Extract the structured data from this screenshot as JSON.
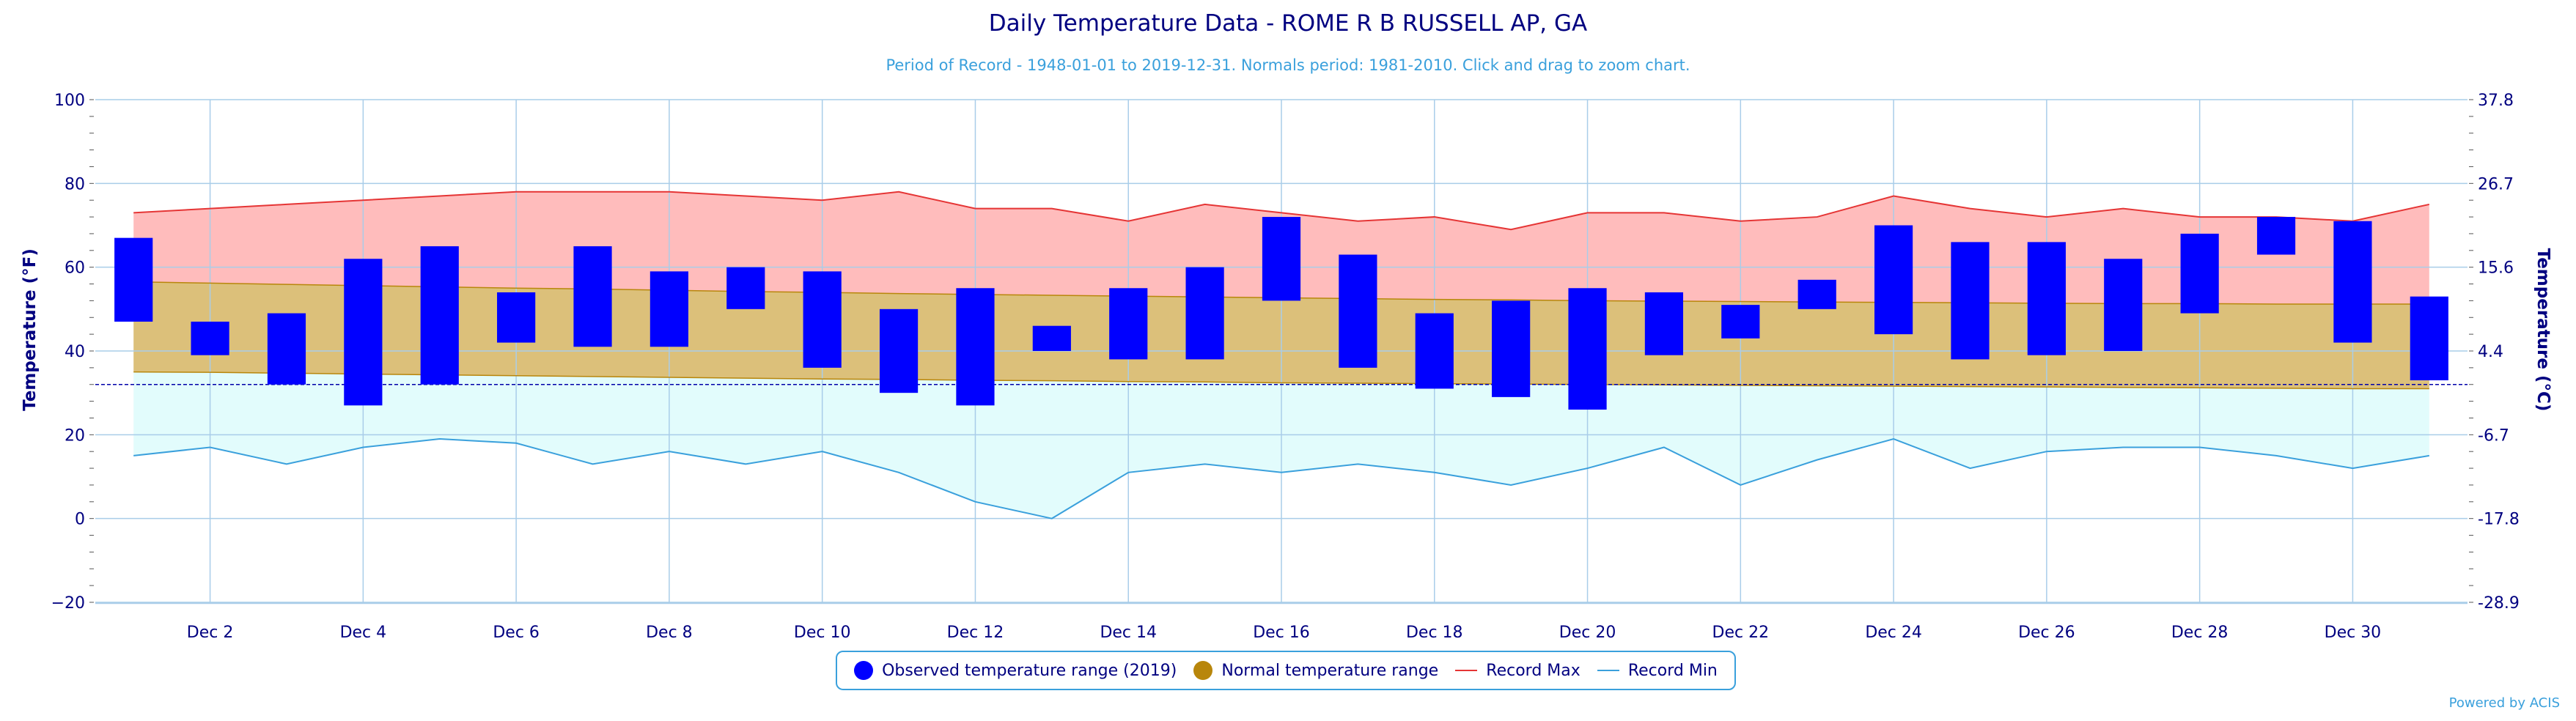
{
  "chart_data": {
    "type": "bar",
    "title": "Daily Temperature Data - ROME R B RUSSELL AP, GA",
    "subtitle": "Period of Record - 1948-01-01 to 2019-12-31. Normals period: 1981-2010. Click and drag to zoom chart.",
    "ylabel": "Temperature (°F)",
    "ylabel_right": "Temperature (°C)",
    "ylim": [
      -20,
      100
    ],
    "y_ticks": [
      "100",
      "80",
      "60",
      "40",
      "20",
      "0",
      "−20"
    ],
    "y_ticks_right": [
      "37.8",
      "26.7",
      "15.6",
      "4.4",
      "-6.7",
      "-17.8",
      "-28.9"
    ],
    "x_tick_labels": [
      "Dec 2",
      "Dec 4",
      "Dec 6",
      "Dec 8",
      "Dec 10",
      "Dec 12",
      "Dec 14",
      "Dec 16",
      "Dec 18",
      "Dec 20",
      "Dec 22",
      "Dec 24",
      "Dec 26",
      "Dec 28",
      "Dec 30"
    ],
    "x_tick_days": [
      2,
      4,
      6,
      8,
      10,
      12,
      14,
      16,
      18,
      20,
      22,
      24,
      26,
      28,
      30
    ],
    "days": [
      1,
      2,
      3,
      4,
      5,
      6,
      7,
      8,
      9,
      10,
      11,
      12,
      13,
      14,
      15,
      16,
      17,
      18,
      19,
      20,
      21,
      22,
      23,
      24,
      25,
      26,
      27,
      28,
      29,
      30,
      31
    ],
    "observed": {
      "name": "Observed temperature range (2019)",
      "low": [
        47,
        39,
        32,
        27,
        32,
        42,
        41,
        41,
        50,
        36,
        30,
        27,
        40,
        38,
        38,
        52,
        36,
        31,
        29,
        26,
        39,
        43,
        50,
        44,
        38,
        39,
        40,
        49,
        63,
        42,
        33
      ],
      "high": [
        67,
        47,
        49,
        62,
        65,
        54,
        65,
        59,
        60,
        59,
        50,
        55,
        46,
        55,
        60,
        72,
        63,
        49,
        52,
        55,
        54,
        51,
        57,
        70,
        66,
        66,
        62,
        68,
        72,
        71,
        53
      ]
    },
    "normal": {
      "name": "Normal temperature range",
      "low": [
        35,
        34.9,
        34.7,
        34.5,
        34.3,
        34.1,
        33.9,
        33.7,
        33.5,
        33.3,
        33.2,
        33.0,
        32.9,
        32.7,
        32.6,
        32.4,
        32.3,
        32.2,
        32.1,
        32.0,
        31.9,
        31.8,
        31.7,
        31.6,
        31.5,
        31.4,
        31.3,
        31.2,
        31.1,
        31.0,
        31.0
      ],
      "high": [
        56.5,
        56.2,
        55.9,
        55.6,
        55.3,
        55.0,
        54.8,
        54.5,
        54.2,
        54.0,
        53.7,
        53.5,
        53.3,
        53.1,
        52.9,
        52.7,
        52.5,
        52.3,
        52.2,
        52.0,
        51.9,
        51.8,
        51.7,
        51.6,
        51.5,
        51.4,
        51.3,
        51.3,
        51.2,
        51.2,
        51.2
      ]
    },
    "record_max": {
      "name": "Record Max",
      "values": [
        73,
        74,
        75,
        76,
        77,
        78,
        78,
        78,
        77,
        76,
        78,
        74,
        74,
        71,
        75,
        73,
        71,
        72,
        69,
        73,
        73,
        71,
        72,
        77,
        74,
        72,
        74,
        72,
        72,
        71,
        75
      ]
    },
    "record_min": {
      "name": "Record Min",
      "values": [
        15,
        17,
        13,
        17,
        19,
        18,
        13,
        16,
        13,
        16,
        11,
        4,
        0,
        11,
        13,
        11,
        13,
        11,
        8,
        12,
        17,
        8,
        14,
        19,
        12,
        16,
        17,
        17,
        15,
        12,
        15
      ]
    },
    "freezing_line": 32,
    "colors": {
      "observed": "#0000ff",
      "normal_fill": "#dcc07a",
      "normal_edge": "#b8860b",
      "record_max_fill": "#ffbcbc",
      "record_max_line": "#e53535",
      "record_min_fill": "#e2fcfc",
      "record_min_line": "#3aa0dc",
      "grid": "#a9cde9",
      "axis_text": "#000080",
      "subtitle": "#3aa0dc",
      "freezing": "#0000aa"
    }
  },
  "legend": {
    "observed": "Observed temperature range (2019)",
    "normal": "Normal temperature range",
    "record_max": "Record Max",
    "record_min": "Record Min"
  },
  "credit": "Powered by ACIS"
}
